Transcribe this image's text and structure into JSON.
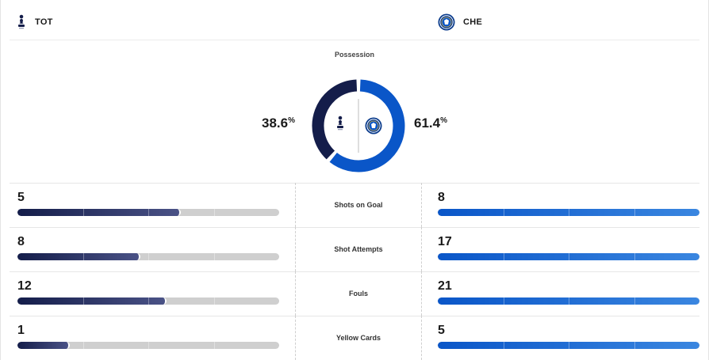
{
  "home": {
    "abbr": "TOT",
    "logo_icon": "tottenham-crest-icon",
    "color": "#141d4a",
    "possession": "38.6",
    "possession_value": 38.6
  },
  "away": {
    "abbr": "CHE",
    "logo_icon": "chelsea-crest-icon",
    "color": "#0a56c8",
    "possession": "61.4",
    "possession_value": 61.4
  },
  "possession": {
    "label": "Possession",
    "unit": "%"
  },
  "stats": [
    {
      "label": "Shots on Goal",
      "home": "5",
      "away": "8",
      "home_fill": 0.625,
      "away_fill": 1.0
    },
    {
      "label": "Shot Attempts",
      "home": "8",
      "away": "17",
      "home_fill": 0.47,
      "away_fill": 1.0
    },
    {
      "label": "Fouls",
      "home": "12",
      "away": "21",
      "home_fill": 0.571,
      "away_fill": 1.0
    },
    {
      "label": "Yellow Cards",
      "home": "1",
      "away": "5",
      "home_fill": 0.2,
      "away_fill": 1.0
    }
  ]
}
